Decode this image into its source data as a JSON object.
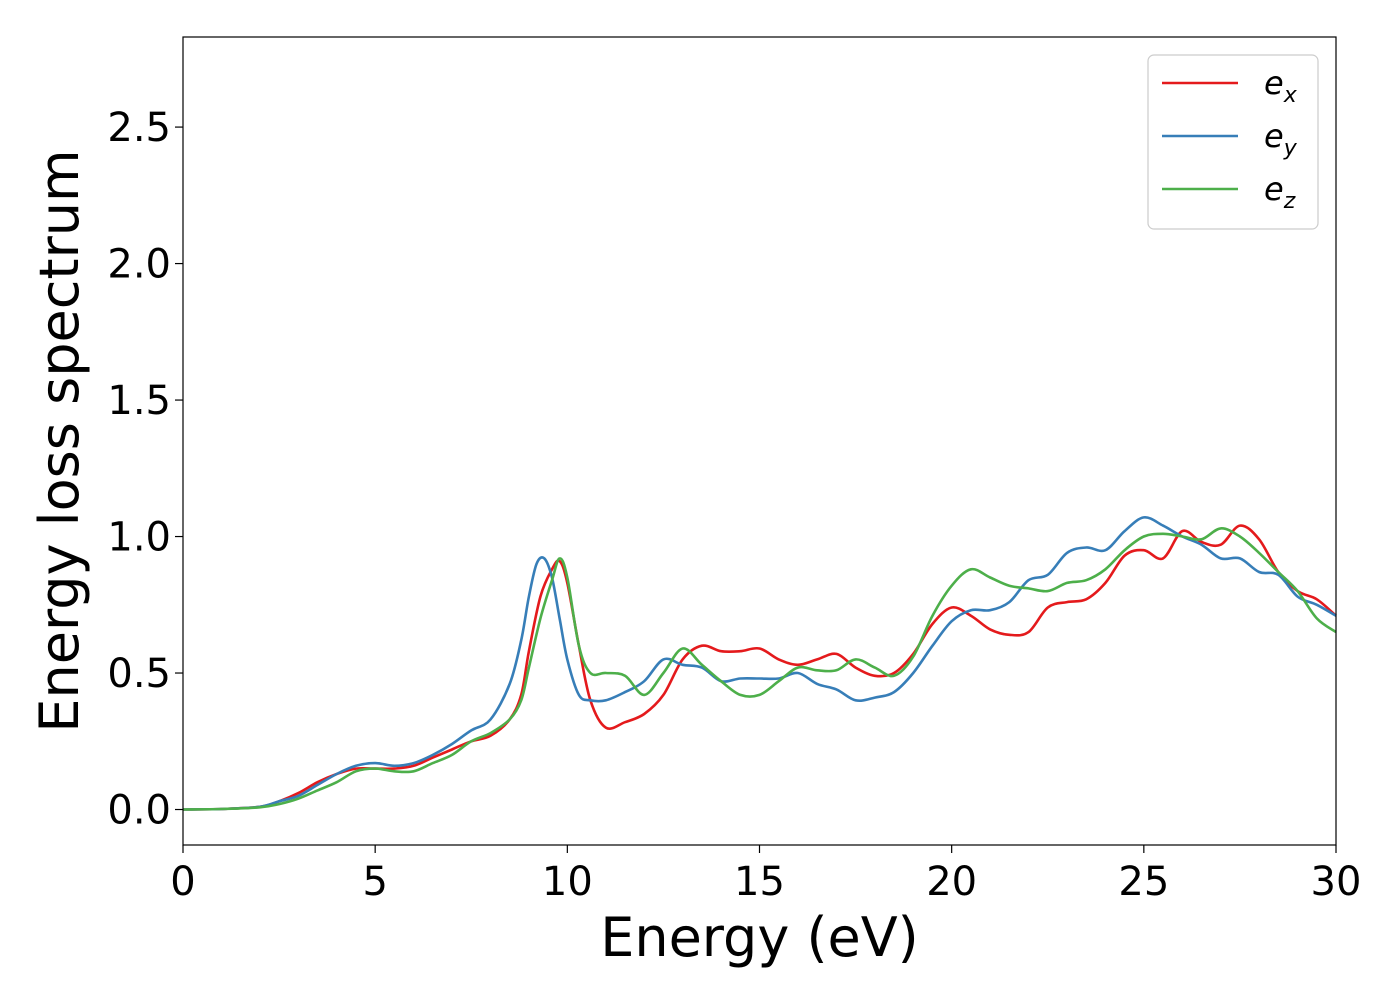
{
  "chart_data": {
    "type": "line",
    "xlabel": "Energy (eV)",
    "ylabel": "Energy loss spectrum",
    "xlim": [
      0,
      30
    ],
    "ylim": [
      -0.13,
      2.83
    ],
    "xticks": [
      0,
      5,
      10,
      15,
      20,
      25,
      30
    ],
    "yticks": [
      0.0,
      0.5,
      1.0,
      1.5,
      2.0,
      2.5
    ],
    "xtick_labels": [
      "0",
      "5",
      "10",
      "15",
      "20",
      "25",
      "30"
    ],
    "ytick_labels": [
      "0.0",
      "0.5",
      "1.0",
      "1.5",
      "2.0",
      "2.5"
    ],
    "grid": false,
    "legend_position": "top-right",
    "series": [
      {
        "name": "e_x",
        "label_base": "e",
        "label_sub": "x",
        "color": "#e41a1c",
        "x": [
          0,
          1,
          2,
          2.5,
          3,
          3.5,
          4,
          4.5,
          5,
          5.5,
          6,
          6.5,
          7,
          7.5,
          8,
          8.5,
          8.8,
          9,
          9.3,
          9.6,
          9.8,
          10,
          10.3,
          10.6,
          11,
          11.5,
          12,
          12.5,
          13,
          13.5,
          14,
          14.5,
          15,
          15.5,
          16,
          16.5,
          17,
          17.5,
          18,
          18.5,
          19,
          19.5,
          20,
          20.5,
          21,
          21.5,
          22,
          22.5,
          23,
          23.5,
          24,
          24.5,
          25,
          25.5,
          26,
          26.5,
          27,
          27.5,
          28,
          28.5,
          29,
          29.5,
          30
        ],
        "y": [
          0,
          0.002,
          0.01,
          0.03,
          0.06,
          0.1,
          0.13,
          0.15,
          0.15,
          0.15,
          0.16,
          0.19,
          0.22,
          0.25,
          0.27,
          0.33,
          0.42,
          0.58,
          0.78,
          0.88,
          0.91,
          0.83,
          0.6,
          0.4,
          0.3,
          0.32,
          0.35,
          0.42,
          0.55,
          0.6,
          0.58,
          0.58,
          0.59,
          0.55,
          0.53,
          0.55,
          0.57,
          0.52,
          0.49,
          0.5,
          0.57,
          0.68,
          0.74,
          0.71,
          0.66,
          0.64,
          0.65,
          0.74,
          0.76,
          0.77,
          0.83,
          0.93,
          0.95,
          0.92,
          1.02,
          0.98,
          0.97,
          1.04,
          0.99,
          0.87,
          0.8,
          0.77,
          0.71
        ]
      },
      {
        "name": "e_y",
        "label_base": "e",
        "label_sub": "y",
        "color": "#377eb8",
        "x": [
          0,
          1,
          2,
          2.5,
          3,
          3.5,
          4,
          4.5,
          5,
          5.5,
          6,
          6.5,
          7,
          7.5,
          8,
          8.5,
          8.8,
          9,
          9.2,
          9.4,
          9.6,
          9.8,
          10,
          10.3,
          10.6,
          11,
          11.5,
          12,
          12.5,
          13,
          13.5,
          14,
          14.5,
          15,
          15.5,
          16,
          16.5,
          17,
          17.5,
          18,
          18.5,
          19,
          19.5,
          20,
          20.5,
          21,
          21.5,
          22,
          22.5,
          23,
          23.5,
          24,
          24.5,
          25,
          25.5,
          26,
          26.5,
          27,
          27.5,
          28,
          28.5,
          29,
          29.5,
          30
        ],
        "y": [
          0,
          0.002,
          0.01,
          0.03,
          0.05,
          0.09,
          0.13,
          0.16,
          0.17,
          0.16,
          0.17,
          0.2,
          0.24,
          0.29,
          0.33,
          0.46,
          0.62,
          0.78,
          0.9,
          0.92,
          0.85,
          0.7,
          0.55,
          0.42,
          0.4,
          0.4,
          0.43,
          0.47,
          0.55,
          0.53,
          0.52,
          0.47,
          0.48,
          0.48,
          0.48,
          0.5,
          0.46,
          0.44,
          0.4,
          0.41,
          0.43,
          0.5,
          0.6,
          0.69,
          0.73,
          0.73,
          0.76,
          0.84,
          0.86,
          0.94,
          0.96,
          0.95,
          1.02,
          1.07,
          1.04,
          1.0,
          0.97,
          0.92,
          0.92,
          0.87,
          0.86,
          0.78,
          0.75,
          0.71
        ]
      },
      {
        "name": "e_z",
        "label_base": "e",
        "label_sub": "z",
        "color": "#4daf4a",
        "x": [
          0,
          1,
          2,
          2.5,
          3,
          3.5,
          4,
          4.5,
          5,
          5.5,
          6,
          6.5,
          7,
          7.5,
          8,
          8.5,
          8.8,
          9,
          9.3,
          9.6,
          9.8,
          10,
          10.3,
          10.6,
          11,
          11.5,
          12,
          12.5,
          13,
          13.5,
          14,
          14.5,
          15,
          15.5,
          16,
          16.5,
          17,
          17.5,
          18,
          18.5,
          19,
          19.5,
          20,
          20.5,
          21,
          21.5,
          22,
          22.5,
          23,
          23.5,
          24,
          24.5,
          25,
          25.5,
          26,
          26.5,
          27,
          27.5,
          28,
          28.5,
          29,
          29.5,
          30
        ],
        "y": [
          0,
          0.002,
          0.008,
          0.02,
          0.04,
          0.07,
          0.1,
          0.14,
          0.15,
          0.14,
          0.14,
          0.17,
          0.2,
          0.25,
          0.28,
          0.33,
          0.4,
          0.52,
          0.7,
          0.84,
          0.92,
          0.85,
          0.6,
          0.5,
          0.5,
          0.49,
          0.42,
          0.5,
          0.59,
          0.53,
          0.47,
          0.42,
          0.42,
          0.47,
          0.52,
          0.51,
          0.51,
          0.55,
          0.52,
          0.49,
          0.56,
          0.71,
          0.82,
          0.88,
          0.85,
          0.82,
          0.81,
          0.8,
          0.83,
          0.84,
          0.88,
          0.95,
          1.0,
          1.01,
          1.0,
          0.99,
          1.03,
          1.0,
          0.94,
          0.87,
          0.8,
          0.7,
          0.65
        ]
      }
    ]
  }
}
